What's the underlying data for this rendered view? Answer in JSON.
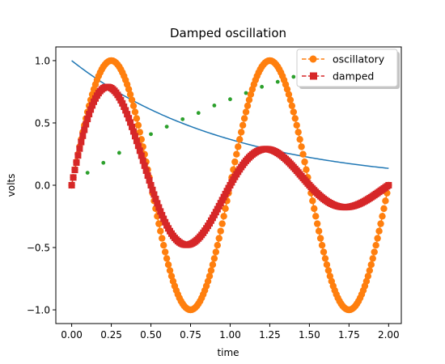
{
  "chart_data": {
    "type": "line",
    "title": "Damped oscillation",
    "xlabel": "time",
    "ylabel": "volts",
    "xlim": [
      -0.1,
      2.08
    ],
    "ylim": [
      -1.11,
      1.11
    ],
    "xticks": [
      0.0,
      0.25,
      0.5,
      0.75,
      1.0,
      1.25,
      1.5,
      1.75,
      2.0
    ],
    "xtick_labels": [
      "0.00",
      "0.25",
      "0.50",
      "0.75",
      "1.00",
      "1.25",
      "1.50",
      "1.75",
      "2.00"
    ],
    "yticks": [
      -1.0,
      -0.5,
      0.0,
      0.5,
      1.0
    ],
    "ytick_labels": [
      "−1.0",
      "−0.5",
      "0.0",
      "0.5",
      "1.0"
    ],
    "grid": false,
    "legend_placement": "top-right",
    "series": [
      {
        "name": "oscillatory",
        "color": "#ff7f0e",
        "marker": "circle",
        "linestyle": "dashed",
        "formula": "sin(2*pi*t)",
        "x_start": 0.0,
        "x_end": 2.0,
        "x_step": 0.01
      },
      {
        "name": "damped",
        "color": "#d62728",
        "marker": "square",
        "linestyle": "dashed",
        "formula": "exp(-t)*sin(2*pi*t)",
        "x_start": 0.0,
        "x_end": 2.0,
        "x_step": 0.01
      },
      {
        "name": "",
        "color": "#1f77b4",
        "marker": "none",
        "linestyle": "solid",
        "formula": "exp(-t)",
        "x_start": 0.0,
        "x_end": 2.0,
        "x_step": 0.01
      },
      {
        "name": "",
        "color": "#2ca02c",
        "marker": "dot",
        "linestyle": "none",
        "x": [
          0.1,
          0.2,
          0.3,
          0.5,
          0.6,
          0.7,
          0.8,
          0.9,
          1.0,
          1.1,
          1.2,
          1.3,
          1.4
        ],
        "y": [
          0.1,
          0.18,
          0.26,
          0.41,
          0.47,
          0.53,
          0.58,
          0.64,
          0.69,
          0.74,
          0.79,
          0.83,
          0.87
        ]
      }
    ]
  }
}
